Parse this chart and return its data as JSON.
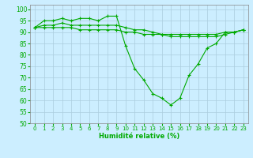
{
  "xlabel": "Humidité relative (%)",
  "bg_color": "#cceeff",
  "grid_color": "#aaccdd",
  "line_color": "#00aa00",
  "xlim": [
    -0.5,
    23.5
  ],
  "ylim": [
    50,
    102
  ],
  "yticks": [
    50,
    55,
    60,
    65,
    70,
    75,
    80,
    85,
    90,
    95,
    100
  ],
  "xticks": [
    0,
    1,
    2,
    3,
    4,
    5,
    6,
    7,
    8,
    9,
    10,
    11,
    12,
    13,
    14,
    15,
    16,
    17,
    18,
    19,
    20,
    21,
    22,
    23
  ],
  "series1": [
    92,
    95,
    95,
    96,
    95,
    96,
    96,
    95,
    97,
    97,
    84,
    74,
    69,
    63,
    61,
    58,
    61,
    71,
    76,
    83,
    85,
    90,
    90,
    91
  ],
  "series2": [
    92,
    93,
    93,
    94,
    93,
    93,
    93,
    93,
    93,
    93,
    92,
    91,
    91,
    90,
    89,
    89,
    89,
    89,
    89,
    89,
    89,
    90,
    90,
    91
  ],
  "series3": [
    92,
    92,
    92,
    92,
    92,
    91,
    91,
    91,
    91,
    91,
    90,
    90,
    89,
    89,
    89,
    88,
    88,
    88,
    88,
    88,
    88,
    89,
    90,
    91
  ]
}
